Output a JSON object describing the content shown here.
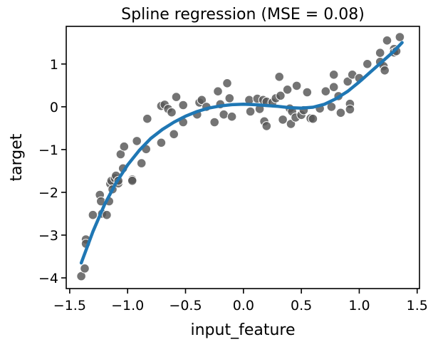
{
  "chart_data": {
    "type": "scatter",
    "title": "Spline regression (MSE = 0.08)",
    "xlabel": "input_feature",
    "ylabel": "target",
    "xlim": [
      -1.53,
      1.52
    ],
    "ylim": [
      -4.25,
      1.88
    ],
    "xticks": [
      -1.5,
      -1.0,
      -0.5,
      0.0,
      0.5,
      1.0,
      1.5
    ],
    "xtick_labels": [
      "−1.5",
      "−1.0",
      "−0.5",
      "0.0",
      "0.5",
      "1.0",
      "1.5"
    ],
    "yticks": [
      -4,
      -3,
      -2,
      -1,
      0,
      1
    ],
    "ytick_labels": [
      "−4",
      "−3",
      "−2",
      "−1",
      "0",
      "1"
    ],
    "grid": false,
    "colors": {
      "points": "#555555",
      "point_edge": "#ffffff",
      "line": "#1f77b4"
    },
    "series": [
      {
        "kind": "scatter",
        "points": [
          [
            -1.4,
            -3.96
          ],
          [
            -1.37,
            -3.78
          ],
          [
            -1.36,
            -3.1
          ],
          [
            -1.36,
            -3.2
          ],
          [
            -1.3,
            -2.53
          ],
          [
            -1.24,
            -2.06
          ],
          [
            -1.23,
            -2.21
          ],
          [
            -1.22,
            -2.5
          ],
          [
            -1.18,
            -2.53
          ],
          [
            -1.16,
            -2.21
          ],
          [
            -1.15,
            -1.8
          ],
          [
            -1.14,
            -1.73
          ],
          [
            -1.13,
            -1.93
          ],
          [
            -1.11,
            -1.67
          ],
          [
            -1.1,
            -1.61
          ],
          [
            -1.08,
            -1.79
          ],
          [
            -1.08,
            -1.73
          ],
          [
            -1.06,
            -1.11
          ],
          [
            -1.04,
            -1.44
          ],
          [
            -1.03,
            -0.93
          ],
          [
            -0.96,
            -1.7
          ],
          [
            -0.96,
            -1.73
          ],
          [
            -0.92,
            -0.8
          ],
          [
            -0.88,
            -1.32
          ],
          [
            -0.84,
            -0.99
          ],
          [
            -0.83,
            -0.28
          ],
          [
            -0.71,
            -0.84
          ],
          [
            -0.71,
            0.02
          ],
          [
            -0.68,
            0.05
          ],
          [
            -0.65,
            -0.05
          ],
          [
            -0.62,
            -0.13
          ],
          [
            -0.6,
            -0.64
          ],
          [
            -0.58,
            0.23
          ],
          [
            -0.52,
            0.04
          ],
          [
            -0.52,
            -0.36
          ],
          [
            -0.4,
            -0.18
          ],
          [
            -0.38,
            0.1
          ],
          [
            -0.36,
            0.16
          ],
          [
            -0.32,
            0.0
          ],
          [
            -0.25,
            -0.36
          ],
          [
            -0.22,
            0.36
          ],
          [
            -0.2,
            0.06
          ],
          [
            -0.17,
            -0.18
          ],
          [
            -0.14,
            0.55
          ],
          [
            -0.12,
            0.2
          ],
          [
            -0.1,
            -0.23
          ],
          [
            0.05,
            0.16
          ],
          [
            0.06,
            -0.11
          ],
          [
            0.12,
            0.19
          ],
          [
            0.14,
            -0.05
          ],
          [
            0.17,
            0.16
          ],
          [
            0.18,
            -0.34
          ],
          [
            0.2,
            0.12
          ],
          [
            0.2,
            -0.45
          ],
          [
            0.25,
            0.1
          ],
          [
            0.28,
            0.2
          ],
          [
            0.31,
            0.7
          ],
          [
            0.32,
            0.26
          ],
          [
            0.34,
            -0.3
          ],
          [
            0.38,
            0.4
          ],
          [
            0.4,
            -0.04
          ],
          [
            0.41,
            -0.4
          ],
          [
            0.42,
            -0.11
          ],
          [
            0.45,
            -0.25
          ],
          [
            0.46,
            0.49
          ],
          [
            0.5,
            -0.19
          ],
          [
            0.52,
            -0.08
          ],
          [
            0.55,
            0.34
          ],
          [
            0.58,
            -0.27
          ],
          [
            0.6,
            -0.28
          ],
          [
            0.66,
            -0.04
          ],
          [
            0.71,
            0.36
          ],
          [
            0.76,
            0.0
          ],
          [
            0.78,
            0.75
          ],
          [
            0.78,
            0.46
          ],
          [
            0.82,
            0.25
          ],
          [
            0.84,
            -0.14
          ],
          [
            0.9,
            0.59
          ],
          [
            0.92,
            0.07
          ],
          [
            0.92,
            -0.06
          ],
          [
            0.94,
            0.75
          ],
          [
            1.0,
            0.67
          ],
          [
            1.07,
            1.0
          ],
          [
            1.18,
            1.05
          ],
          [
            1.18,
            1.26
          ],
          [
            1.21,
            0.95
          ],
          [
            1.22,
            0.85
          ],
          [
            1.24,
            1.55
          ],
          [
            1.3,
            1.35
          ],
          [
            1.3,
            1.27
          ],
          [
            1.32,
            1.3
          ],
          [
            1.35,
            1.63
          ]
        ]
      },
      {
        "kind": "line",
        "x": [
          -1.4,
          -1.3,
          -1.2,
          -1.1,
          -1.0,
          -0.9,
          -0.8,
          -0.7,
          -0.6,
          -0.5,
          -0.4,
          -0.3,
          -0.2,
          -0.1,
          0.0,
          0.1,
          0.2,
          0.3,
          0.4,
          0.5,
          0.6,
          0.7,
          0.8,
          0.9,
          1.0,
          1.1,
          1.2,
          1.3,
          1.37
        ],
        "y": [
          -3.65,
          -2.92,
          -2.29,
          -1.78,
          -1.36,
          -1.02,
          -0.74,
          -0.53,
          -0.36,
          -0.22,
          -0.11,
          -0.03,
          0.02,
          0.05,
          0.06,
          0.05,
          0.03,
          0.01,
          -0.02,
          -0.03,
          -0.01,
          0.06,
          0.19,
          0.36,
          0.58,
          0.82,
          1.06,
          1.3,
          1.5
        ]
      }
    ]
  }
}
